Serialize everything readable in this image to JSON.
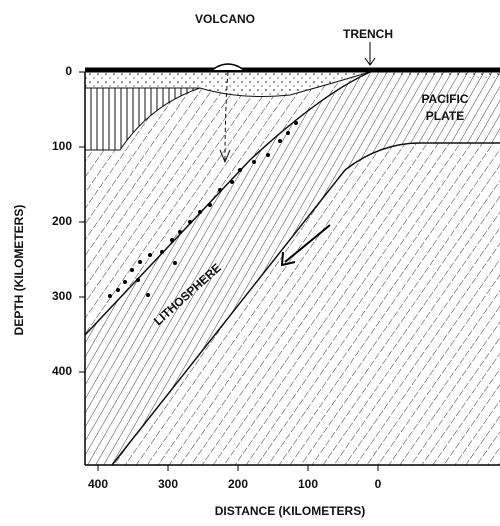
{
  "labels": {
    "volcano": "VOLCANO",
    "trench": "TRENCH",
    "pacific": "PACIFIC",
    "plate": "PLATE",
    "lithosphere": "LITHOSPHERE"
  },
  "axes": {
    "y_title": "DEPTH (KILOMETERS)",
    "x_title": "DISTANCE (KILOMETERS)",
    "x_ticks": [
      400,
      300,
      200,
      100,
      0
    ],
    "y_ticks": [
      0,
      100,
      200,
      300,
      400
    ]
  }
}
